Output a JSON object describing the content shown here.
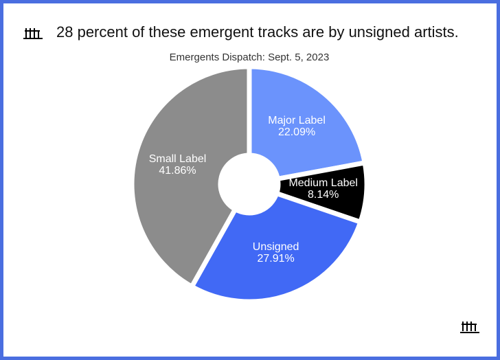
{
  "chart_data": {
    "type": "pie",
    "title": "28 percent of these emergent tracks are by unsigned artists.",
    "subtitle": "Emergents Dispatch: Sept. 5, 2023",
    "categories": [
      "Major Label",
      "Medium Label",
      "Unsigned",
      "Small Label"
    ],
    "values": [
      22.09,
      8.14,
      27.91,
      41.86
    ],
    "value_labels": [
      "22.09%",
      "8.14%",
      "27.91%",
      "41.86%"
    ],
    "colors": [
      "#6b93fc",
      "#000000",
      "#4169f5",
      "#8c8c8c"
    ]
  }
}
